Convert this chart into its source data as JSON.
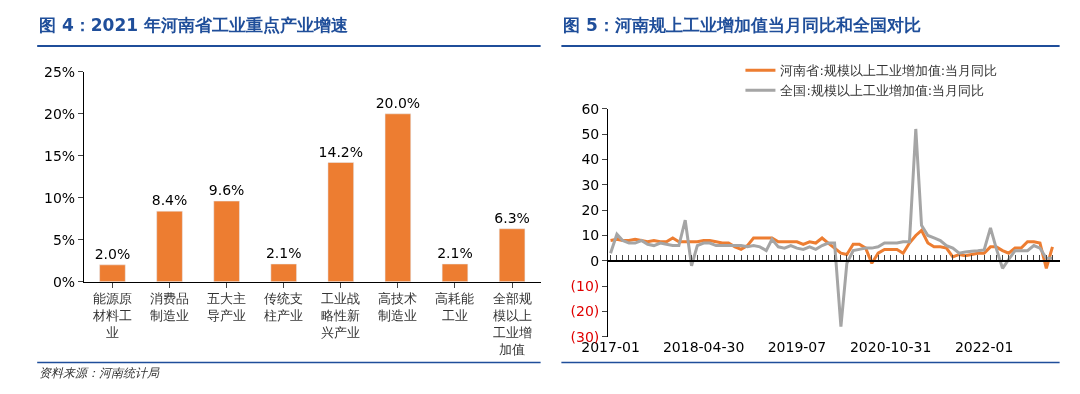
{
  "chart_data": [
    {
      "type": "bar",
      "title": "图 4：2021 年河南省工业重点产业增速",
      "categories": [
        "能源原材料工业",
        "消费品制造业",
        "五大主导产业",
        "传统支柱产业",
        "工业战略性新兴产业",
        "高技术制造业",
        "高耗能工业",
        "全部规模以上工业增加值"
      ],
      "values": [
        2.0,
        8.4,
        9.6,
        2.1,
        14.2,
        20.0,
        2.1,
        6.3
      ],
      "value_labels": [
        "2.0%",
        "8.4%",
        "9.6%",
        "2.1%",
        "14.2%",
        "20.0%",
        "2.1%",
        "6.3%"
      ],
      "color": "#ed7d31",
      "ylim": [
        0,
        25
      ],
      "yticks": [
        {
          "value": 0,
          "label": "0%"
        },
        {
          "value": 5,
          "label": "5%"
        },
        {
          "value": 10,
          "label": "10%"
        },
        {
          "value": 15,
          "label": "15%"
        },
        {
          "value": 20,
          "label": "20%"
        },
        {
          "value": 25,
          "label": "25%"
        }
      ],
      "annotations": [
        "资料来源：河南统计局"
      ],
      "legend": false
    },
    {
      "type": "line",
      "title": "图 5：河南规上工业增加值当月同比和全国对比",
      "x": [
        "2017-01",
        "2017-02",
        "2017-03",
        "2017-04",
        "2017-05",
        "2017-06",
        "2017-07",
        "2017-08",
        "2017-09",
        "2017-10",
        "2017-11",
        "2017-12",
        "2018-01",
        "2018-02",
        "2018-03",
        "2018-04",
        "2018-05",
        "2018-06",
        "2018-07",
        "2018-08",
        "2018-09",
        "2018-10",
        "2018-11",
        "2018-12",
        "2019-01",
        "2019-02",
        "2019-03",
        "2019-04",
        "2019-05",
        "2019-06",
        "2019-07",
        "2019-08",
        "2019-09",
        "2019-10",
        "2019-11",
        "2019-12",
        "2020-01",
        "2020-02",
        "2020-03",
        "2020-04",
        "2020-05",
        "2020-06",
        "2020-07",
        "2020-08",
        "2020-09",
        "2020-10",
        "2020-11",
        "2020-12",
        "2021-01",
        "2021-02",
        "2021-03",
        "2021-04",
        "2021-05",
        "2021-06",
        "2021-07",
        "2021-08",
        "2021-09",
        "2021-10",
        "2021-11",
        "2021-12",
        "2022-01",
        "2022-02",
        "2022-03",
        "2022-04",
        "2022-05",
        "2022-06",
        "2022-07",
        "2022-08",
        "2022-09",
        "2022-10",
        "2022-11",
        "2022-12"
      ],
      "series": [
        {
          "name": "河南省:规模以上工业增加值:当月同比",
          "color": "#ed7d31",
          "values": [
            8,
            8.5,
            8,
            8,
            8.5,
            8,
            7.5,
            8,
            7.5,
            7.5,
            9,
            7.5,
            7.5,
            7.5,
            7.5,
            8,
            8,
            7.5,
            7,
            7,
            5.5,
            4.5,
            6,
            9,
            9,
            9,
            9,
            7.5,
            7.5,
            7.5,
            7.5,
            6.5,
            7.5,
            7,
            9,
            7,
            5,
            3,
            2.5,
            6.5,
            6.5,
            5,
            -1,
            3,
            4.5,
            4.5,
            4.5,
            3,
            7,
            10,
            12,
            7,
            5.5,
            5.5,
            5,
            1.5,
            2.5,
            2,
            2.5,
            3,
            3,
            5.5,
            5.5,
            4,
            3,
            5,
            5,
            7.5,
            7.5,
            7,
            -3,
            5.5
          ]
        },
        {
          "name": "全国:规模以上工业增加值:当月同比",
          "color": "#a5a5a5",
          "values": [
            3,
            10.5,
            8,
            7,
            7,
            8,
            6.5,
            6,
            7,
            6.5,
            6,
            6,
            16,
            -2,
            6,
            7,
            7,
            6,
            6,
            6,
            6,
            6,
            5.5,
            6,
            5.5,
            4,
            8.5,
            5.5,
            5,
            6,
            5,
            4.5,
            5.5,
            4.5,
            6,
            7,
            7,
            -26,
            -1,
            4,
            4.5,
            5,
            5,
            5.5,
            7,
            7,
            7,
            7.5,
            7.5,
            52,
            14,
            10,
            9,
            8,
            6,
            5,
            3,
            3.5,
            3.8,
            4,
            4.3,
            13,
            5,
            -3,
            0.5,
            4,
            4,
            4,
            6,
            5,
            1,
            1
          ]
        }
      ],
      "xlim": [
        "2016-12-20",
        "2023-01-05"
      ],
      "xticks": [
        {
          "value": "2017-01",
          "label": "2017-01"
        },
        {
          "value": "2018-04",
          "label": "2018-04-30"
        },
        {
          "value": "2019-07",
          "label": "2019-07"
        },
        {
          "value": "2020-10",
          "label": "2020-10-31"
        },
        {
          "value": "2022-01",
          "label": "2022-01"
        }
      ],
      "ylim": [
        -30,
        60
      ],
      "yticks": [
        {
          "value": -30,
          "label": "(30)"
        },
        {
          "value": -20,
          "label": "(20)"
        },
        {
          "value": -10,
          "label": "(10)"
        },
        0,
        10,
        20,
        30,
        40,
        50,
        60
      ],
      "legend": "top",
      "marker": "none",
      "line_style": "solid"
    }
  ]
}
